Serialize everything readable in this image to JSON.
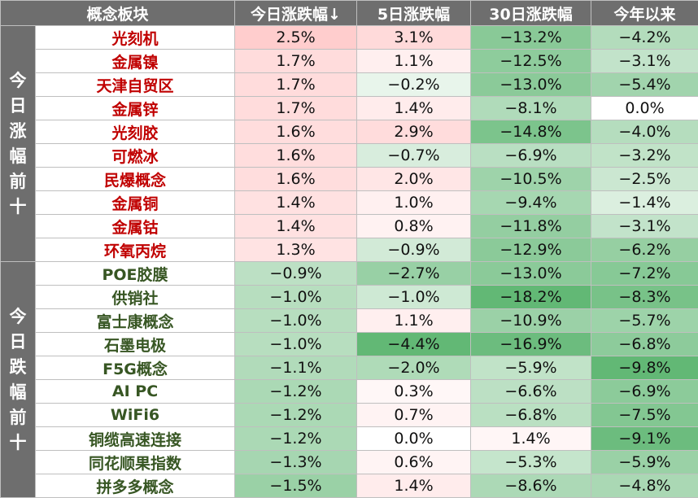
{
  "headers": [
    "概念板块",
    "今日涨跌幅↓",
    "5日涨跌幅",
    "30日涨跌幅",
    "今年以来"
  ],
  "groups": [
    {
      "label": "今日涨幅前十",
      "name_color": "#c00000",
      "rows": [
        {
          "name": "光刻机",
          "d1": "2.5%",
          "d5": "3.1%",
          "d30": "−13.2%",
          "ytd": "−4.2%"
        },
        {
          "name": "金属镍",
          "d1": "1.7%",
          "d5": "1.1%",
          "d30": "−12.5%",
          "ytd": "−3.1%"
        },
        {
          "name": "天津自贸区",
          "d1": "1.7%",
          "d5": "−0.2%",
          "d30": "−13.0%",
          "ytd": "−5.4%"
        },
        {
          "name": "金属锌",
          "d1": "1.7%",
          "d5": "1.4%",
          "d30": "−8.1%",
          "ytd": "0.0%"
        },
        {
          "name": "光刻胶",
          "d1": "1.6%",
          "d5": "2.9%",
          "d30": "−14.8%",
          "ytd": "−4.0%"
        },
        {
          "name": "可燃冰",
          "d1": "1.6%",
          "d5": "−0.7%",
          "d30": "−6.9%",
          "ytd": "−3.2%"
        },
        {
          "name": "民爆概念",
          "d1": "1.6%",
          "d5": "2.0%",
          "d30": "−10.5%",
          "ytd": "−2.5%"
        },
        {
          "name": "金属铜",
          "d1": "1.4%",
          "d5": "1.0%",
          "d30": "−9.4%",
          "ytd": "−1.4%"
        },
        {
          "name": "金属钴",
          "d1": "1.4%",
          "d5": "0.8%",
          "d30": "−11.8%",
          "ytd": "−3.1%"
        },
        {
          "name": "环氧丙烷",
          "d1": "1.3%",
          "d5": "−0.9%",
          "d30": "−12.9%",
          "ytd": "−6.2%"
        }
      ]
    },
    {
      "label": "今日跌幅前十",
      "name_color": "#375623",
      "rows": [
        {
          "name": "POE胶膜",
          "d1": "−0.9%",
          "d5": "−2.7%",
          "d30": "−13.0%",
          "ytd": "−7.2%"
        },
        {
          "name": "供销社",
          "d1": "−1.0%",
          "d5": "−1.0%",
          "d30": "−18.2%",
          "ytd": "−8.3%"
        },
        {
          "name": "富士康概念",
          "d1": "−1.0%",
          "d5": "1.1%",
          "d30": "−10.9%",
          "ytd": "−5.7%"
        },
        {
          "name": "石墨电极",
          "d1": "−1.0%",
          "d5": "−4.4%",
          "d30": "−16.9%",
          "ytd": "−6.8%"
        },
        {
          "name": "F5G概念",
          "d1": "−1.1%",
          "d5": "−2.0%",
          "d30": "−5.9%",
          "ytd": "−9.8%"
        },
        {
          "name": "AI PC",
          "d1": "−1.2%",
          "d5": "0.3%",
          "d30": "−6.6%",
          "ytd": "−6.9%"
        },
        {
          "name": "WiFi6",
          "d1": "−1.2%",
          "d5": "0.7%",
          "d30": "−6.8%",
          "ytd": "−7.5%"
        },
        {
          "name": "铜缆高速连接",
          "d1": "−1.2%",
          "d5": "0.0%",
          "d30": "1.4%",
          "ytd": "−9.1%"
        },
        {
          "name": "同花顺果指数",
          "d1": "−1.3%",
          "d5": "0.6%",
          "d30": "−5.3%",
          "ytd": "−5.9%"
        },
        {
          "name": "拼多多概念",
          "d1": "−1.5%",
          "d5": "1.4%",
          "d30": "−8.6%",
          "ytd": "−4.8%"
        }
      ]
    }
  ]
}
